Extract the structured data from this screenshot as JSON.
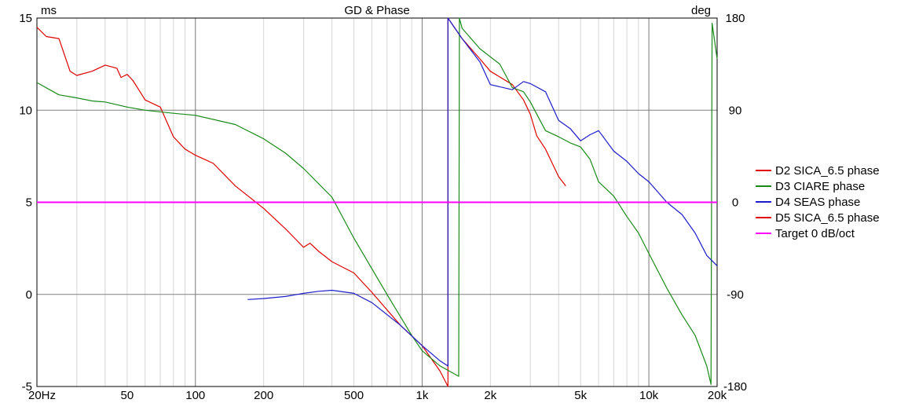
{
  "chart_data": {
    "type": "line",
    "title": "GD & Phase",
    "x_scale": "log",
    "xlim": [
      20,
      20000
    ],
    "y_left": {
      "unit_label": "ms",
      "lim": [
        -5,
        15
      ],
      "ticks": [
        -5,
        0,
        5,
        10,
        15
      ]
    },
    "y_right": {
      "unit_label": "deg",
      "lim": [
        -180,
        180
      ],
      "ticks": [
        -180,
        -90,
        0,
        90,
        180
      ]
    },
    "x_ticks": [
      {
        "value": 20,
        "label": "20Hz"
      },
      {
        "value": 50,
        "label": "50"
      },
      {
        "value": 100,
        "label": "100"
      },
      {
        "value": 200,
        "label": "200"
      },
      {
        "value": 500,
        "label": "500"
      },
      {
        "value": 1000,
        "label": "1k"
      },
      {
        "value": 2000,
        "label": "2k"
      },
      {
        "value": 5000,
        "label": "5k"
      },
      {
        "value": 10000,
        "label": "10k"
      },
      {
        "value": 20000,
        "label": "20k"
      }
    ],
    "grid": true,
    "legend_position": "right",
    "series": [
      {
        "name": "D2 SICA_6.5 phase",
        "color": "#e00000",
        "axis": "right",
        "points": [
          [
            20,
            171
          ],
          [
            22,
            162
          ],
          [
            25,
            160
          ],
          [
            28,
            128
          ],
          [
            30,
            124
          ],
          [
            35,
            128
          ],
          [
            40,
            134
          ],
          [
            45,
            131
          ],
          [
            47,
            122
          ],
          [
            50,
            125
          ],
          [
            53,
            119
          ],
          [
            57,
            108
          ],
          [
            60,
            100
          ],
          [
            70,
            93
          ],
          [
            80,
            64
          ],
          [
            90,
            52
          ],
          [
            100,
            46
          ],
          [
            120,
            38
          ],
          [
            150,
            16
          ],
          [
            200,
            -6
          ],
          [
            250,
            -26
          ],
          [
            300,
            -44
          ],
          [
            320,
            -40
          ],
          [
            350,
            -48
          ],
          [
            400,
            -58
          ],
          [
            500,
            -69
          ],
          [
            600,
            -88
          ],
          [
            800,
            -120
          ],
          [
            1000,
            -140
          ],
          [
            1200,
            -165
          ],
          [
            1300,
            -180
          ],
          [
            1300,
            180
          ],
          [
            1500,
            160
          ],
          [
            1800,
            140
          ],
          [
            2000,
            128
          ],
          [
            2500,
            115
          ],
          [
            2800,
            100
          ],
          [
            3000,
            86
          ],
          [
            3200,
            65
          ],
          [
            3500,
            52
          ],
          [
            4000,
            25
          ],
          [
            4300,
            16
          ]
        ]
      },
      {
        "name": "D3 CIARE phase",
        "color": "#1a8a1a",
        "axis": "right",
        "points": [
          [
            20,
            117
          ],
          [
            25,
            105
          ],
          [
            30,
            102
          ],
          [
            35,
            99
          ],
          [
            40,
            98
          ],
          [
            50,
            93
          ],
          [
            60,
            90
          ],
          [
            80,
            87
          ],
          [
            100,
            85
          ],
          [
            150,
            76
          ],
          [
            200,
            62
          ],
          [
            250,
            48
          ],
          [
            300,
            33
          ],
          [
            400,
            5
          ],
          [
            500,
            -35
          ],
          [
            700,
            -90
          ],
          [
            900,
            -130
          ],
          [
            1000,
            -145
          ],
          [
            1200,
            -160
          ],
          [
            1450,
            -170
          ],
          [
            1460,
            180
          ],
          [
            1500,
            170
          ],
          [
            1800,
            150
          ],
          [
            2200,
            135
          ],
          [
            2500,
            112
          ],
          [
            2800,
            108
          ],
          [
            3000,
            98
          ],
          [
            3500,
            70
          ],
          [
            4000,
            64
          ],
          [
            4500,
            58
          ],
          [
            5000,
            54
          ],
          [
            5500,
            42
          ],
          [
            6000,
            20
          ],
          [
            7000,
            6
          ],
          [
            8000,
            -14
          ],
          [
            9000,
            -30
          ],
          [
            10000,
            -50
          ],
          [
            12000,
            -84
          ],
          [
            14000,
            -110
          ],
          [
            16000,
            -130
          ],
          [
            18000,
            -160
          ],
          [
            18800,
            -178
          ],
          [
            19000,
            175
          ],
          [
            20000,
            140
          ]
        ]
      },
      {
        "name": "D4 SEAS phase",
        "color": "#1c1ccc",
        "axis": "right",
        "points": [
          [
            170,
            -95
          ],
          [
            200,
            -94
          ],
          [
            250,
            -92
          ],
          [
            300,
            -89
          ],
          [
            350,
            -87
          ],
          [
            400,
            -86
          ],
          [
            500,
            -89
          ],
          [
            600,
            -98
          ],
          [
            800,
            -120
          ],
          [
            1000,
            -140
          ],
          [
            1200,
            -155
          ],
          [
            1300,
            -160
          ],
          [
            1300,
            180
          ],
          [
            1500,
            160
          ],
          [
            1800,
            137
          ],
          [
            2000,
            115
          ],
          [
            2500,
            110
          ],
          [
            2800,
            118
          ],
          [
            3000,
            116
          ],
          [
            3500,
            108
          ],
          [
            4000,
            80
          ],
          [
            4500,
            72
          ],
          [
            5000,
            60
          ],
          [
            5500,
            66
          ],
          [
            6000,
            70
          ],
          [
            7000,
            50
          ],
          [
            8000,
            40
          ],
          [
            9000,
            28
          ],
          [
            10000,
            20
          ],
          [
            12000,
            0
          ],
          [
            14000,
            -12
          ],
          [
            16000,
            -30
          ],
          [
            18000,
            -52
          ],
          [
            20000,
            -62
          ]
        ]
      },
      {
        "name": "D5 SICA_6.5 phase",
        "color": "#e00000",
        "axis": "right",
        "points": []
      },
      {
        "name": "Target 0 dB/oct",
        "color": "#ff00ff",
        "axis": "right",
        "points": [
          [
            20,
            0
          ],
          [
            20000,
            0
          ]
        ]
      }
    ]
  }
}
